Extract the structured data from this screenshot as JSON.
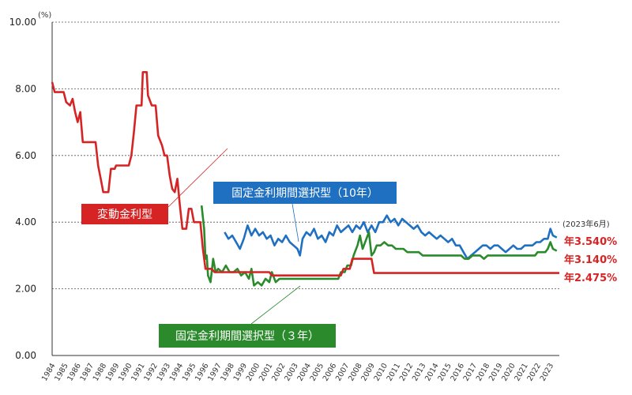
{
  "chart_data": {
    "type": "line",
    "yunit": "(%)",
    "ylim": [
      0,
      10
    ],
    "yticks": [
      "0.00",
      "2.00",
      "4.00",
      "6.00",
      "8.00",
      "10.00"
    ],
    "xlim": [
      1984,
      2023.7
    ],
    "xticks": [
      "1984",
      "1985",
      "1986",
      "1987",
      "1988",
      "1989",
      "1990",
      "1991",
      "1992",
      "1993",
      "1994",
      "1995",
      "1996",
      "1997",
      "1998",
      "1999",
      "2000",
      "2001",
      "2002",
      "2003",
      "2004",
      "2005",
      "2006",
      "2007",
      "2008",
      "2009",
      "2010",
      "2011",
      "2012",
      "2013",
      "2014",
      "2015",
      "2016",
      "2017",
      "2018",
      "2019",
      "2020",
      "2021",
      "2022",
      "2023"
    ],
    "grid": "horizontal-dotted",
    "asof": "(2023年6月)",
    "series": [
      {
        "name": "変動金利型",
        "color": "#d62424",
        "label_color": "#d62424",
        "end_value": "年2.475%",
        "points": [
          [
            1984.0,
            8.2
          ],
          [
            1984.2,
            7.9
          ],
          [
            1984.9,
            7.9
          ],
          [
            1985.1,
            7.6
          ],
          [
            1985.4,
            7.5
          ],
          [
            1985.6,
            7.7
          ],
          [
            1985.8,
            7.3
          ],
          [
            1986.0,
            7.0
          ],
          [
            1986.2,
            7.3
          ],
          [
            1986.4,
            6.4
          ],
          [
            1987.4,
            6.4
          ],
          [
            1987.6,
            5.7
          ],
          [
            1987.8,
            5.3
          ],
          [
            1988.0,
            4.9
          ],
          [
            1988.4,
            4.9
          ],
          [
            1988.6,
            5.6
          ],
          [
            1988.9,
            5.6
          ],
          [
            1989.0,
            5.7
          ],
          [
            1990.0,
            5.7
          ],
          [
            1990.2,
            6.0
          ],
          [
            1990.4,
            6.7
          ],
          [
            1990.6,
            7.5
          ],
          [
            1991.0,
            7.5
          ],
          [
            1991.1,
            8.5
          ],
          [
            1991.4,
            8.5
          ],
          [
            1991.5,
            7.8
          ],
          [
            1991.8,
            7.5
          ],
          [
            1992.1,
            7.5
          ],
          [
            1992.3,
            6.6
          ],
          [
            1992.6,
            6.3
          ],
          [
            1992.8,
            6.0
          ],
          [
            1993.0,
            6.0
          ],
          [
            1993.2,
            5.4
          ],
          [
            1993.4,
            5.0
          ],
          [
            1993.6,
            4.9
          ],
          [
            1993.8,
            5.3
          ],
          [
            1994.0,
            4.5
          ],
          [
            1994.2,
            3.8
          ],
          [
            1994.5,
            3.8
          ],
          [
            1994.7,
            4.4
          ],
          [
            1994.9,
            4.4
          ],
          [
            1995.1,
            4.0
          ],
          [
            1995.6,
            4.0
          ],
          [
            1995.8,
            3.2
          ],
          [
            1996.0,
            2.6
          ],
          [
            1996.5,
            2.6
          ],
          [
            1996.7,
            2.5
          ],
          [
            2001.0,
            2.5
          ],
          [
            2001.2,
            2.4
          ],
          [
            2006.6,
            2.4
          ],
          [
            2006.8,
            2.6
          ],
          [
            2007.3,
            2.6
          ],
          [
            2007.5,
            2.9
          ],
          [
            2009.0,
            2.9
          ],
          [
            2009.2,
            2.475
          ],
          [
            2023.7,
            2.475
          ]
        ]
      },
      {
        "name": "固定金利期間選択型（10年）",
        "color": "#1f70c1",
        "label_color": "#1f70c1",
        "end_value": "年3.540%",
        "points": [
          [
            1997.5,
            3.7
          ],
          [
            1997.8,
            3.5
          ],
          [
            1998.1,
            3.6
          ],
          [
            1998.4,
            3.4
          ],
          [
            1998.7,
            3.2
          ],
          [
            1999.0,
            3.5
          ],
          [
            1999.3,
            3.9
          ],
          [
            1999.6,
            3.6
          ],
          [
            1999.9,
            3.8
          ],
          [
            2000.2,
            3.6
          ],
          [
            2000.5,
            3.7
          ],
          [
            2000.8,
            3.5
          ],
          [
            2001.1,
            3.6
          ],
          [
            2001.4,
            3.3
          ],
          [
            2001.7,
            3.5
          ],
          [
            2002.0,
            3.4
          ],
          [
            2002.3,
            3.6
          ],
          [
            2002.6,
            3.4
          ],
          [
            2002.9,
            3.3
          ],
          [
            2003.2,
            3.2
          ],
          [
            2003.4,
            3.0
          ],
          [
            2003.6,
            3.5
          ],
          [
            2003.9,
            3.7
          ],
          [
            2004.2,
            3.6
          ],
          [
            2004.5,
            3.8
          ],
          [
            2004.8,
            3.5
          ],
          [
            2005.1,
            3.6
          ],
          [
            2005.4,
            3.4
          ],
          [
            2005.7,
            3.7
          ],
          [
            2006.0,
            3.6
          ],
          [
            2006.3,
            3.9
          ],
          [
            2006.6,
            3.7
          ],
          [
            2006.9,
            3.8
          ],
          [
            2007.2,
            3.9
          ],
          [
            2007.5,
            3.7
          ],
          [
            2007.8,
            3.9
          ],
          [
            2008.1,
            3.8
          ],
          [
            2008.4,
            4.0
          ],
          [
            2008.7,
            3.7
          ],
          [
            2009.0,
            3.9
          ],
          [
            2009.3,
            3.7
          ],
          [
            2009.6,
            4.0
          ],
          [
            2009.9,
            4.0
          ],
          [
            2010.2,
            4.2
          ],
          [
            2010.5,
            4.0
          ],
          [
            2010.8,
            4.1
          ],
          [
            2011.1,
            3.9
          ],
          [
            2011.4,
            4.1
          ],
          [
            2011.7,
            4.0
          ],
          [
            2012.0,
            3.9
          ],
          [
            2012.3,
            3.8
          ],
          [
            2012.6,
            3.9
          ],
          [
            2012.9,
            3.7
          ],
          [
            2013.2,
            3.6
          ],
          [
            2013.5,
            3.7
          ],
          [
            2013.8,
            3.6
          ],
          [
            2014.1,
            3.5
          ],
          [
            2014.4,
            3.6
          ],
          [
            2014.7,
            3.5
          ],
          [
            2015.0,
            3.4
          ],
          [
            2015.3,
            3.5
          ],
          [
            2015.6,
            3.3
          ],
          [
            2015.9,
            3.3
          ],
          [
            2016.2,
            3.1
          ],
          [
            2016.5,
            2.9
          ],
          [
            2016.8,
            3.0
          ],
          [
            2017.1,
            3.1
          ],
          [
            2017.4,
            3.2
          ],
          [
            2017.7,
            3.3
          ],
          [
            2018.0,
            3.3
          ],
          [
            2018.3,
            3.2
          ],
          [
            2018.6,
            3.3
          ],
          [
            2018.9,
            3.3
          ],
          [
            2019.2,
            3.2
          ],
          [
            2019.5,
            3.1
          ],
          [
            2019.8,
            3.2
          ],
          [
            2020.1,
            3.3
          ],
          [
            2020.4,
            3.2
          ],
          [
            2020.7,
            3.2
          ],
          [
            2021.0,
            3.3
          ],
          [
            2021.3,
            3.3
          ],
          [
            2021.6,
            3.3
          ],
          [
            2021.9,
            3.4
          ],
          [
            2022.2,
            3.4
          ],
          [
            2022.5,
            3.5
          ],
          [
            2022.8,
            3.5
          ],
          [
            2023.0,
            3.8
          ],
          [
            2023.2,
            3.6
          ],
          [
            2023.5,
            3.54
          ]
        ]
      },
      {
        "name": "固定金利期間選択型（３年）",
        "color": "#2b8a2b",
        "label_color": "#2b8a2b",
        "end_value": "年3.140%",
        "points": [
          [
            1995.7,
            4.5
          ],
          [
            1995.9,
            3.8
          ],
          [
            1996.0,
            2.9
          ],
          [
            1996.1,
            3.0
          ],
          [
            1996.2,
            2.4
          ],
          [
            1996.4,
            2.2
          ],
          [
            1996.6,
            2.9
          ],
          [
            1996.8,
            2.5
          ],
          [
            1997.0,
            2.6
          ],
          [
            1997.3,
            2.5
          ],
          [
            1997.6,
            2.7
          ],
          [
            1997.9,
            2.5
          ],
          [
            1998.2,
            2.5
          ],
          [
            1998.5,
            2.6
          ],
          [
            1998.8,
            2.4
          ],
          [
            1999.1,
            2.5
          ],
          [
            1999.4,
            2.3
          ],
          [
            1999.6,
            2.6
          ],
          [
            1999.8,
            2.1
          ],
          [
            2000.1,
            2.2
          ],
          [
            2000.4,
            2.1
          ],
          [
            2000.7,
            2.3
          ],
          [
            2001.0,
            2.2
          ],
          [
            2001.2,
            2.5
          ],
          [
            2001.5,
            2.2
          ],
          [
            2001.8,
            2.3
          ],
          [
            2006.4,
            2.3
          ],
          [
            2006.6,
            2.5
          ],
          [
            2006.9,
            2.5
          ],
          [
            2007.1,
            2.7
          ],
          [
            2007.4,
            2.7
          ],
          [
            2007.6,
            3.0
          ],
          [
            2007.9,
            3.3
          ],
          [
            2008.1,
            3.6
          ],
          [
            2008.3,
            3.2
          ],
          [
            2008.6,
            3.5
          ],
          [
            2008.8,
            3.7
          ],
          [
            2009.0,
            3.0
          ],
          [
            2009.2,
            3.1
          ],
          [
            2009.4,
            3.3
          ],
          [
            2009.7,
            3.3
          ],
          [
            2010.0,
            3.4
          ],
          [
            2010.3,
            3.3
          ],
          [
            2010.6,
            3.3
          ],
          [
            2010.9,
            3.2
          ],
          [
            2011.2,
            3.2
          ],
          [
            2011.5,
            3.2
          ],
          [
            2011.8,
            3.1
          ],
          [
            2012.1,
            3.1
          ],
          [
            2012.4,
            3.1
          ],
          [
            2012.7,
            3.1
          ],
          [
            2013.0,
            3.0
          ],
          [
            2016.0,
            3.0
          ],
          [
            2016.3,
            2.9
          ],
          [
            2016.6,
            2.9
          ],
          [
            2016.9,
            3.0
          ],
          [
            2017.5,
            3.0
          ],
          [
            2017.8,
            2.9
          ],
          [
            2018.1,
            3.0
          ],
          [
            2021.8,
            3.0
          ],
          [
            2022.0,
            3.1
          ],
          [
            2022.3,
            3.1
          ],
          [
            2022.6,
            3.1
          ],
          [
            2022.8,
            3.2
          ],
          [
            2023.0,
            3.4
          ],
          [
            2023.2,
            3.2
          ],
          [
            2023.5,
            3.14
          ]
        ]
      }
    ]
  }
}
